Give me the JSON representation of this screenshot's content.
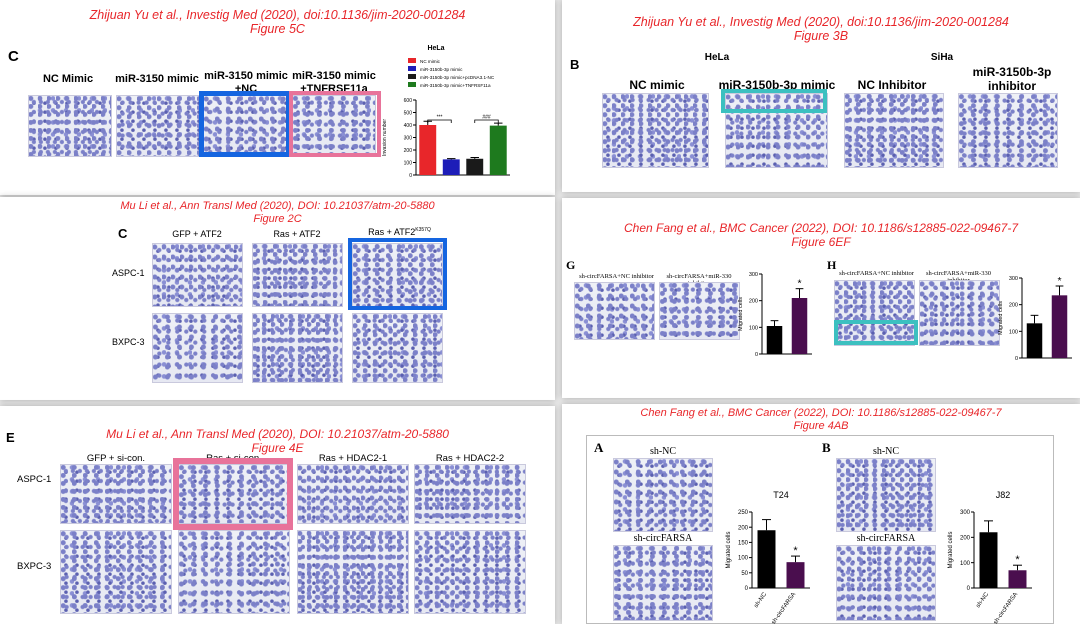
{
  "colors": {
    "ref_red": "#e8262a",
    "highlight_blue": "#1565e0",
    "highlight_pink": "#e8739a",
    "highlight_teal": "#3cc0c0",
    "stain": "#7b80c8",
    "bar_purple": "#4a0e4e"
  },
  "p1": {
    "ref_line1": "Zhijuan Yu et al., Investig Med (2020), doi:10.1136/jim-2020-001284",
    "ref_line2": "Figure 5C",
    "panel": "C",
    "labels": [
      "NC Mimic",
      "miR-3150 mimic",
      "miR-3150 mimic\n+NC",
      "miR-3150 mimic\n+TNFRSF11a"
    ]
  },
  "p2": {
    "ref_line1": "Zhijuan Yu et al., Investig Med (2020), doi:10.1136/jim-2020-001284",
    "ref_line2": "Figure 3B",
    "panel": "B",
    "hela": "HeLa",
    "siha": "SiHa",
    "labels": [
      "NC mimic",
      "miR-3150b-3p mimic",
      "NC Inhibitor",
      "miR-3150b-3p\ninhibitor"
    ]
  },
  "p3": {
    "ref_line1": "Mu Li et al.,  Ann Transl Med (2020), DOI: 10.21037/atm-20-5880",
    "ref_line2": "Figure 2C",
    "panel": "C",
    "cols": [
      "GFP + ATF2",
      "Ras + ATF2",
      "Ras + ATF2"
    ],
    "col3_sup": "K357Q",
    "rows": [
      "ASPC-1",
      "BXPC-3"
    ]
  },
  "p4": {
    "ref_line1": "Chen Fang  et al., BMC Cancer (2022), DOI: 10.1186/s12885-022-09467-7",
    "ref_line2": "Figure 6EF",
    "panel_g": "G",
    "panel_h": "H",
    "g_labels": [
      "sh-circFARSA+NC inhibitor",
      "sh-circFARSA+miR-330 inhibitor"
    ],
    "h_labels": [
      "sh-circFARSA+NC inhibitor",
      "sh-circFARSA+miR-330 inhibitor"
    ],
    "star": "*"
  },
  "p5": {
    "ref_line1": "Mu Li et al.,  Ann Transl Med (2020), DOI: 10.21037/atm-20-5880",
    "ref_line2": "Figure 4E",
    "panel": "E",
    "cols": [
      "GFP + si-con.",
      "Ras + si-con.",
      "Ras + HDAC2-1",
      "Ras + HDAC2-2"
    ],
    "rows": [
      "ASPC-1",
      "BXPC-3"
    ]
  },
  "p6": {
    "ref_line1": "Chen Fang  et al., BMC Cancer (2022), DOI: 10.1186/s12885-022-09467-7",
    "ref_line2": "Figure 4AB",
    "panel_a": "A",
    "panel_b": "B",
    "top_label": "sh-NC",
    "bottom_label": "sh-circFARSA",
    "star": "*"
  },
  "chart_data": [
    {
      "id": "fig5c",
      "type": "bar",
      "title": "HeLa",
      "ylabel": "Invasion number",
      "ylim": [
        0,
        600
      ],
      "yticks": [
        0,
        100,
        200,
        300,
        400,
        500,
        600
      ],
      "categories": [
        "NC mimic",
        "miR-3150b-3p mimic",
        "miR-3150b-3p mimic+pcDNA3.1-NC",
        "miR-3150b-3p mimic+TNFRSF11a"
      ],
      "values": [
        400,
        125,
        130,
        395
      ],
      "errors": [
        30,
        6,
        10,
        20
      ],
      "colors": [
        "#e8262a",
        "#1d1db8",
        "#1a1a1a",
        "#1e7a1e"
      ],
      "legend": [
        "NC mimic",
        "miR-3150b-3p mimic",
        "miR-3150b-3p mimic+pcDNA3.1-NC",
        "miR-3150b-3p mimic+TNFRSF11a"
      ],
      "annotations": [
        "***",
        "###"
      ],
      "legend_position": "top"
    },
    {
      "id": "fig6g",
      "type": "bar",
      "ylabel": "Migrated cells",
      "ylim": [
        0,
        300
      ],
      "yticks": [
        0,
        100,
        200,
        300
      ],
      "categories": [
        "",
        ""
      ],
      "values": [
        105,
        210
      ],
      "errors": [
        20,
        35
      ],
      "colors": [
        "#000000",
        "#4a0e4e"
      ]
    },
    {
      "id": "fig6h",
      "type": "bar",
      "ylabel": "Migrated cells",
      "ylim": [
        0,
        300
      ],
      "yticks": [
        0,
        100,
        200,
        300
      ],
      "categories": [
        "",
        ""
      ],
      "values": [
        130,
        235
      ],
      "errors": [
        30,
        35
      ],
      "colors": [
        "#000000",
        "#4a0e4e"
      ]
    },
    {
      "id": "fig4a",
      "type": "bar",
      "title": "T24",
      "ylabel": "Migrated cells",
      "ylim": [
        0,
        250
      ],
      "yticks": [
        0,
        50,
        100,
        150,
        200,
        250
      ],
      "categories": [
        "sh-NC",
        "sh-circFARSA"
      ],
      "values": [
        190,
        85
      ],
      "errors": [
        35,
        20
      ],
      "colors": [
        "#000000",
        "#4a0e4e"
      ]
    },
    {
      "id": "fig4b",
      "type": "bar",
      "title": "J82",
      "ylabel": "Migrated cells",
      "ylim": [
        0,
        300
      ],
      "yticks": [
        0,
        100,
        200,
        300
      ],
      "categories": [
        "sh-NC",
        "sh-circFARSA"
      ],
      "values": [
        220,
        70
      ],
      "errors": [
        45,
        20
      ],
      "colors": [
        "#000000",
        "#4a0e4e"
      ]
    }
  ]
}
